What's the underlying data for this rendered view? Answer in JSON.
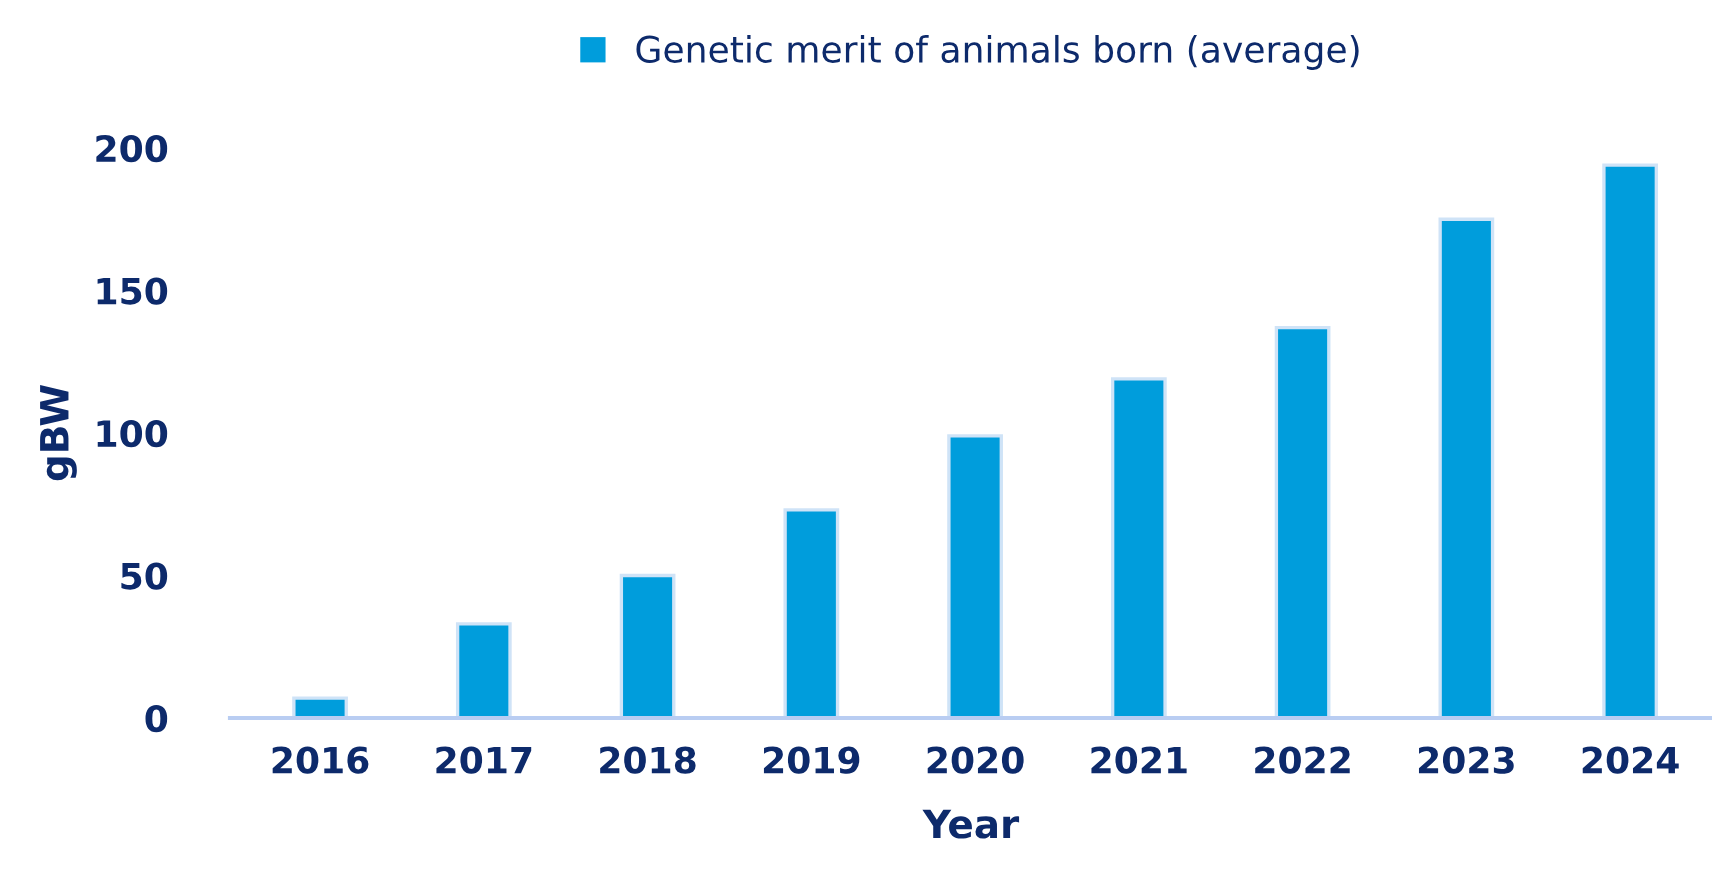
{
  "chart_data": {
    "type": "bar",
    "xlabel": "Year",
    "ylabel": "gBW",
    "categories": [
      "2016",
      "2017",
      "2018",
      "2019",
      "2020",
      "2021",
      "2022",
      "2023",
      "2024"
    ],
    "series": [
      {
        "name": "Genetic merit of animals born (average)",
        "color": "#009ddc",
        "values": [
          7,
          33,
          50,
          73,
          99,
          119,
          137,
          175,
          194
        ]
      }
    ],
    "ylim": [
      0,
      200
    ],
    "yticks": [
      0,
      50,
      100,
      150,
      200
    ],
    "grid": false,
    "legend": "top"
  }
}
